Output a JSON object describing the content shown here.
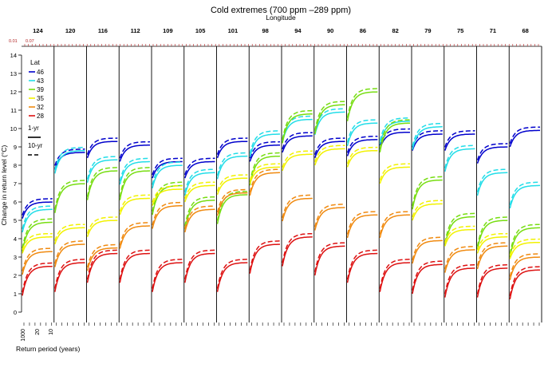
{
  "chart_data": {
    "type": "line",
    "title": "Cold extremes (700 ppm –289 ppm)",
    "subtitle": "Longitude",
    "ylabel": "Change in return level (°C)",
    "xlabel": "Return period (years)",
    "ylim": [
      0,
      14
    ],
    "y_ticks": [
      0,
      1,
      2,
      3,
      4,
      5,
      6,
      7,
      8,
      9,
      10,
      11,
      12,
      13,
      14
    ],
    "panels": [
      "124",
      "120",
      "116",
      "112",
      "109",
      "105",
      "101",
      "98",
      "94",
      "90",
      "86",
      "82",
      "79",
      "75",
      "71",
      "68"
    ],
    "top_axis_labels": [
      "0.01",
      "0.07"
    ],
    "x_ticks_first_panel": [
      "1000",
      "20",
      "10"
    ],
    "legend": {
      "title": "Lat",
      "series": [
        {
          "name": "46",
          "color": "#0000cc"
        },
        {
          "name": "43",
          "color": "#22dde8"
        },
        {
          "name": "39",
          "color": "#77dd11"
        },
        {
          "name": "35",
          "color": "#f2f200"
        },
        {
          "name": "32",
          "color": "#f08a10"
        },
        {
          "name": "28",
          "color": "#dd1111"
        }
      ],
      "line_types": [
        {
          "name": "1-yr",
          "dash": "solid"
        },
        {
          "name": "10-yr",
          "dash": "dashed"
        }
      ]
    },
    "series": [
      {
        "name": "46",
        "values": [
          6.0,
          8.7,
          9.3,
          9.1,
          8.2,
          8.2,
          9.3,
          9.1,
          9.6,
          9.3,
          9.4,
          9.8,
          9.7,
          9.7,
          9.0,
          9.9
        ]
      },
      {
        "name": "43",
        "values": [
          5.6,
          8.8,
          8.3,
          8.2,
          8.0,
          7.6,
          8.5,
          9.7,
          10.5,
          10.9,
          10.3,
          10.4,
          10.1,
          8.9,
          7.6,
          6.9
        ]
      },
      {
        "name": "39",
        "values": [
          4.9,
          7.0,
          7.7,
          7.7,
          6.9,
          6.1,
          6.4,
          8.5,
          10.8,
          11.3,
          12.0,
          10.3,
          7.2,
          5.2,
          5.0,
          4.6
        ]
      },
      {
        "name": "35",
        "values": [
          4.1,
          4.6,
          5.0,
          6.2,
          6.7,
          6.9,
          7.3,
          7.9,
          8.6,
          8.9,
          8.8,
          7.9,
          5.9,
          4.5,
          4.1,
          3.8
        ]
      },
      {
        "name": "32",
        "values": [
          3.3,
          3.7,
          3.5,
          4.7,
          5.8,
          5.6,
          6.5,
          7.6,
          6.2,
          5.7,
          5.3,
          5.3,
          3.9,
          3.4,
          3.6,
          3.0
        ]
      },
      {
        "name": "28",
        "values": [
          2.5,
          2.7,
          3.2,
          3.2,
          2.7,
          3.2,
          2.7,
          3.7,
          4.1,
          3.6,
          3.2,
          2.7,
          2.6,
          2.4,
          2.4,
          2.3
        ]
      }
    ]
  }
}
